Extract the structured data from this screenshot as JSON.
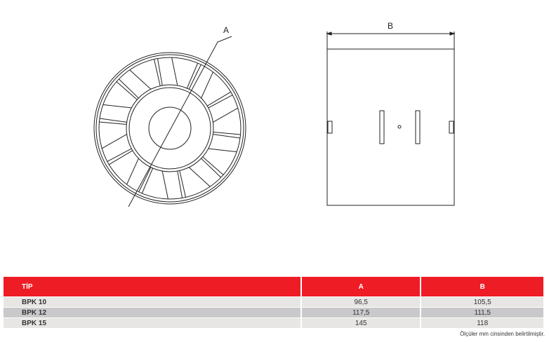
{
  "drawing": {
    "label_a": "A",
    "label_b": "B"
  },
  "table": {
    "headers": [
      "TİP",
      "A",
      "B"
    ],
    "rows": [
      [
        "BPK 10",
        "96,5",
        "105,5"
      ],
      [
        "BPK 12",
        "117,5",
        "111,5"
      ],
      [
        "BPK 15",
        "145",
        "118"
      ]
    ],
    "header_color": "#ee1c25"
  },
  "note": "Ölçüler mm cinsinden belirtilmiştir."
}
